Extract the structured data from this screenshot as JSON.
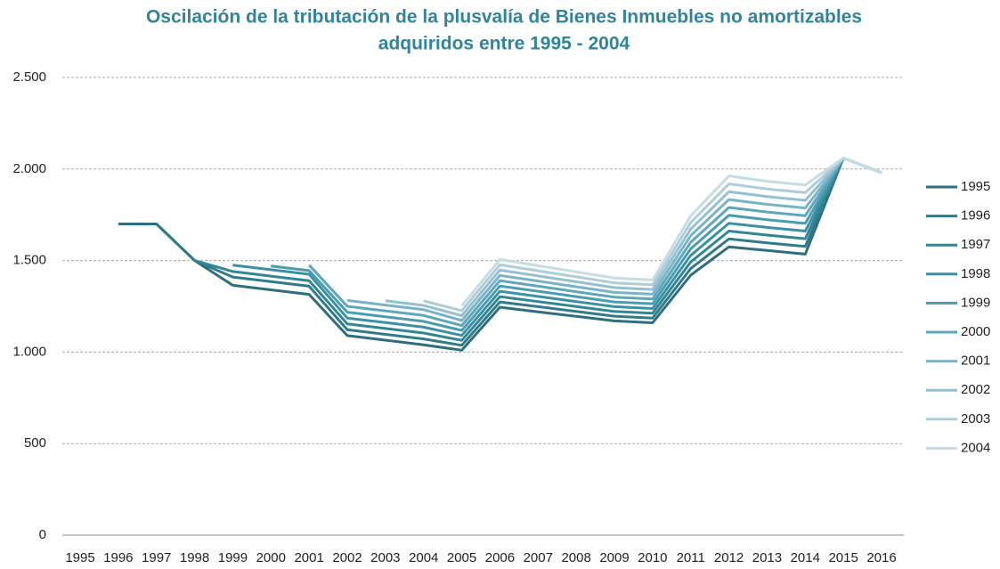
{
  "chart_data": {
    "type": "line",
    "title": "Oscilación de la tributación de  la plusvalía de Bienes Inmuebles no amortizables",
    "subtitle": "adquiridos entre 1995   - 2004",
    "categories": [
      "1995",
      "1996",
      "1997",
      "1998",
      "1999",
      "2000",
      "2001",
      "2002",
      "2003",
      "2004",
      "2005",
      "2006",
      "2007",
      "2008",
      "2009",
      "2010",
      "2011",
      "2012",
      "2013",
      "2014",
      "2015",
      "2016"
    ],
    "ylim": [
      0,
      2500
    ],
    "yticks": [
      0,
      {
        "value": 500,
        "label": "500"
      },
      {
        "value": 1000,
        "label": "1.000"
      },
      {
        "value": 1500,
        "label": "1.500"
      },
      {
        "value": 2000,
        "label": "2.000"
      },
      {
        "value": 2500,
        "label": "2.500"
      }
    ],
    "grid": true,
    "legend": "right",
    "series": [
      {
        "name": "1995",
        "color": "#2f6e7c",
        "values": [
          null,
          1700,
          1700,
          1500,
          1365,
          1340,
          1315,
          1090,
          1065,
          1040,
          1010,
          1245,
          1220,
          1195,
          1170,
          1160,
          1420,
          1575,
          1555,
          1535,
          2060,
          1980
        ]
      },
      {
        "name": "1996",
        "color": "#317a88",
        "values": [
          null,
          null,
          1700,
          1500,
          1410,
          1385,
          1360,
          1122,
          1097,
          1072,
          1037,
          1274,
          1248,
          1222,
          1196,
          1186,
          1456,
          1618,
          1597,
          1577,
          2060,
          1980
        ]
      },
      {
        "name": "1997",
        "color": "#348594",
        "values": [
          null,
          null,
          null,
          1500,
          1440,
          1415,
          1390,
          1154,
          1129,
          1104,
          1064,
          1303,
          1276,
          1249,
          1222,
          1212,
          1492,
          1661,
          1639,
          1619,
          2060,
          1980
        ]
      },
      {
        "name": "1998",
        "color": "#3a91a2",
        "values": [
          null,
          null,
          null,
          null,
          1475,
          1450,
          1425,
          1186,
          1161,
          1136,
          1091,
          1332,
          1304,
          1276,
          1248,
          1238,
          1528,
          1704,
          1681,
          1661,
          2060,
          1980
        ]
      },
      {
        "name": "1999",
        "color": "#4a9cb0",
        "values": [
          null,
          null,
          null,
          null,
          null,
          1470,
          1445,
          1218,
          1193,
          1168,
          1118,
          1361,
          1332,
          1303,
          1274,
          1264,
          1564,
          1747,
          1723,
          1703,
          2060,
          1980
        ]
      },
      {
        "name": "2000",
        "color": "#5ea7bb",
        "values": [
          null,
          null,
          null,
          null,
          null,
          null,
          1475,
          1250,
          1225,
          1200,
          1145,
          1390,
          1360,
          1330,
          1300,
          1290,
          1600,
          1790,
          1765,
          1745,
          2060,
          1980
        ]
      },
      {
        "name": "2001",
        "color": "#79b3c6",
        "values": [
          null,
          null,
          null,
          null,
          null,
          null,
          null,
          1282,
          1257,
          1232,
          1172,
          1419,
          1388,
          1357,
          1326,
          1316,
          1636,
          1833,
          1807,
          1787,
          2060,
          1980
        ]
      },
      {
        "name": "2002",
        "color": "#94c0cf",
        "values": [
          null,
          null,
          null,
          null,
          null,
          null,
          null,
          null,
          1280,
          1255,
          1199,
          1448,
          1416,
          1384,
          1352,
          1342,
          1672,
          1876,
          1849,
          1829,
          2060,
          1980
        ]
      },
      {
        "name": "2003",
        "color": "#aecdd9",
        "values": [
          null,
          null,
          null,
          null,
          null,
          null,
          null,
          null,
          null,
          1280,
          1226,
          1477,
          1444,
          1411,
          1378,
          1368,
          1708,
          1919,
          1891,
          1871,
          2060,
          1980
        ]
      },
      {
        "name": "2004",
        "color": "#c6dce5",
        "values": [
          null,
          null,
          null,
          null,
          null,
          null,
          null,
          null,
          null,
          null,
          1253,
          1506,
          1472,
          1438,
          1404,
          1394,
          1744,
          1962,
          1933,
          1913,
          2060,
          1980
        ]
      }
    ]
  }
}
